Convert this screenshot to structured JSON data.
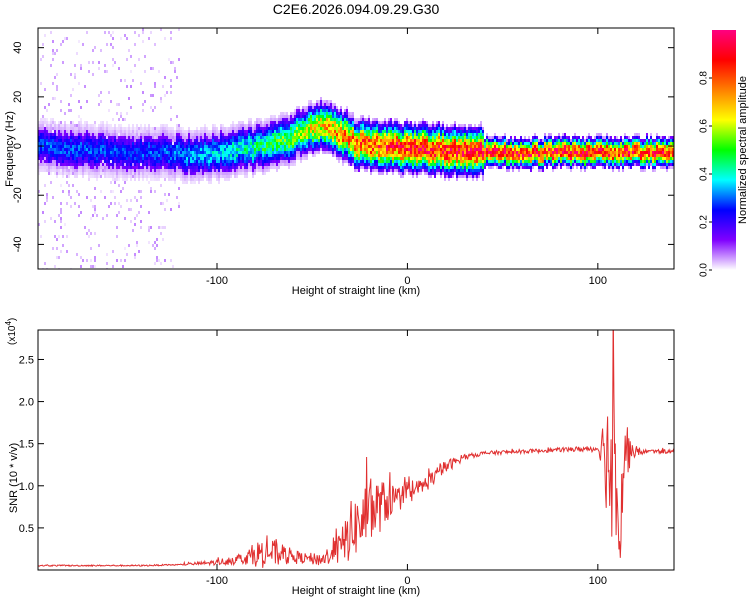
{
  "title": "C2E6.2026.094.09.29.G30",
  "chart_data": [
    {
      "type": "heatmap",
      "name": "spectrogram",
      "xlabel": "Height of straight line (km)",
      "ylabel": "Frequency (Hz)",
      "xlim": [
        -194,
        140
      ],
      "ylim": [
        -50,
        48
      ],
      "xticks": [
        -100,
        0,
        100
      ],
      "yticks": [
        -40,
        -20,
        0,
        20,
        40
      ],
      "ridge": {
        "x": [
          -194,
          -170,
          -150,
          -130,
          -110,
          -95,
          -80,
          -65,
          -55,
          -48,
          -40,
          -34,
          -28,
          -20,
          -12,
          0,
          20,
          50,
          80,
          100,
          110,
          140
        ],
        "freq": [
          0,
          -1,
          -2,
          -2,
          -3,
          -2,
          0,
          3,
          6,
          9,
          8,
          5,
          2,
          1,
          0,
          0,
          -1,
          -2,
          -2,
          -2,
          -2,
          -2
        ],
        "amplitude": [
          0.3,
          0.3,
          0.28,
          0.3,
          0.35,
          0.4,
          0.45,
          0.55,
          0.6,
          0.7,
          0.75,
          0.8,
          0.82,
          0.85,
          0.9,
          0.92,
          0.93,
          0.95,
          0.95,
          0.95,
          0.9,
          0.95
        ]
      }
    },
    {
      "type": "colorbar",
      "label": "Normalized spectral amplitude",
      "range": [
        0,
        1
      ],
      "ticks": [
        "0.0",
        "0.2",
        "0.4",
        "0.6",
        "0.8"
      ],
      "tick_values": [
        0,
        0.2,
        0.4,
        0.6,
        0.8
      ],
      "colors": [
        "#ffffff",
        "#8000ff",
        "#0000ff",
        "#00ffff",
        "#00ff00",
        "#ffff00",
        "#ff8000",
        "#ff0000",
        "#ff0080"
      ]
    },
    {
      "type": "line",
      "name": "snr",
      "xlabel": "Height of straight line (km)",
      "ylabel": "SNR (10 * v/v)",
      "scale_label": "(x10",
      "scale_exp": "4",
      "scale_close": ")",
      "xlim": [
        -194,
        140
      ],
      "ylim": [
        0,
        2.85
      ],
      "xticks": [
        -100,
        0,
        100
      ],
      "yticks": [
        0.5,
        1.0,
        1.5,
        2.0,
        2.5
      ],
      "ytick_labels": [
        "0.5",
        "1.0",
        "1.5",
        "2.0",
        "2.5"
      ],
      "color": "#e03030",
      "envelope": {
        "x": [
          -194,
          -140,
          -120,
          -100,
          -85,
          -75,
          -65,
          -55,
          -45,
          -35,
          -30,
          -25,
          -20,
          -15,
          -10,
          -5,
          0,
          10,
          20,
          30,
          40,
          60,
          80,
          100,
          103,
          106,
          108,
          110,
          112,
          114,
          118,
          125,
          140
        ],
        "base": [
          0.05,
          0.05,
          0.06,
          0.08,
          0.12,
          0.16,
          0.14,
          0.12,
          0.1,
          0.2,
          0.35,
          0.45,
          0.55,
          0.65,
          0.75,
          0.8,
          0.85,
          1.0,
          1.2,
          1.33,
          1.38,
          1.4,
          1.42,
          1.43,
          1.4,
          0.9,
          1.2,
          1.0,
          0.5,
          1.3,
          1.38,
          1.4,
          1.4
        ],
        "spread": [
          0.01,
          0.01,
          0.01,
          0.04,
          0.1,
          0.25,
          0.15,
          0.08,
          0.1,
          0.25,
          0.45,
          0.45,
          0.55,
          0.4,
          0.3,
          0.2,
          0.15,
          0.12,
          0.1,
          0.04,
          0.03,
          0.03,
          0.03,
          0.05,
          0.4,
          1.3,
          1.4,
          1.2,
          1.2,
          0.6,
          0.1,
          0.03,
          0.03
        ]
      }
    }
  ]
}
